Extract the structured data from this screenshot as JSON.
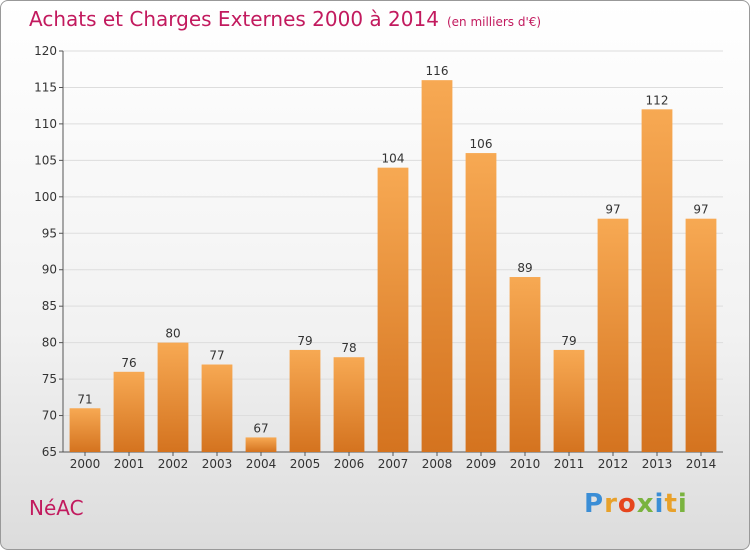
{
  "title": "Achats et Charges Externes 2000 à 2014",
  "subtitle": "(en milliers d'€)",
  "commune": "NéAC",
  "logo": {
    "letters": [
      "P",
      "r",
      "o",
      "x",
      "i",
      "t",
      "i"
    ],
    "colors": [
      "#3b8ed6",
      "#e8a12a",
      "#e6451d",
      "#7ab33f",
      "#3b8ed6",
      "#e8a12a",
      "#7ab33f"
    ]
  },
  "colors": {
    "bar_light": "#f7a953",
    "bar_dark": "#d4731f",
    "title": "#c21a5e",
    "grid": "#dddddd"
  },
  "chart_data": {
    "type": "bar",
    "categories": [
      "2000",
      "2001",
      "2002",
      "2003",
      "2004",
      "2005",
      "2006",
      "2007",
      "2008",
      "2009",
      "2010",
      "2011",
      "2012",
      "2013",
      "2014"
    ],
    "values": [
      71,
      76,
      80,
      77,
      67,
      79,
      78,
      104,
      116,
      106,
      89,
      79,
      97,
      112,
      97
    ],
    "ylim": [
      65,
      120
    ],
    "yticks": [
      65,
      70,
      75,
      80,
      85,
      90,
      95,
      100,
      105,
      110,
      115,
      120
    ],
    "grid": true,
    "data_labels": true
  }
}
